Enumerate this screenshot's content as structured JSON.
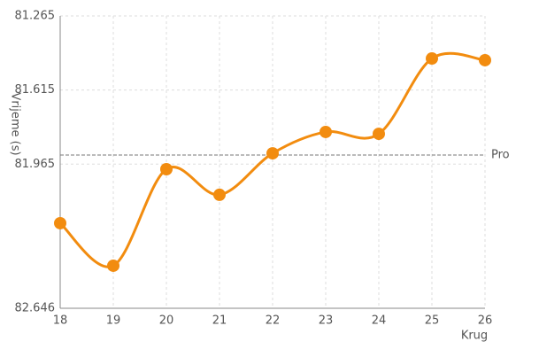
{
  "chart_data": {
    "type": "line",
    "x_label": "Krug",
    "y_label": "Vrijeme (s)",
    "x": [
      18,
      19,
      20,
      21,
      22,
      23,
      24,
      25,
      26
    ],
    "series": [
      {
        "color": "#f28c0f",
        "values": [
          82.244,
          82.445,
          81.989,
          82.11,
          81.914,
          81.813,
          81.822,
          81.466,
          81.474
        ]
      }
    ],
    "xlim": [
      18,
      26
    ],
    "xticks": [
      18,
      19,
      20,
      21,
      22,
      23,
      24,
      25,
      26
    ],
    "ylim": [
      82.646,
      81.265
    ],
    "yticks": [
      82.646,
      81.965,
      81.615,
      81.265
    ],
    "reference_lines": [
      {
        "value": 81.922,
        "label": "Pro"
      }
    ],
    "grid": true,
    "smooth": true
  }
}
